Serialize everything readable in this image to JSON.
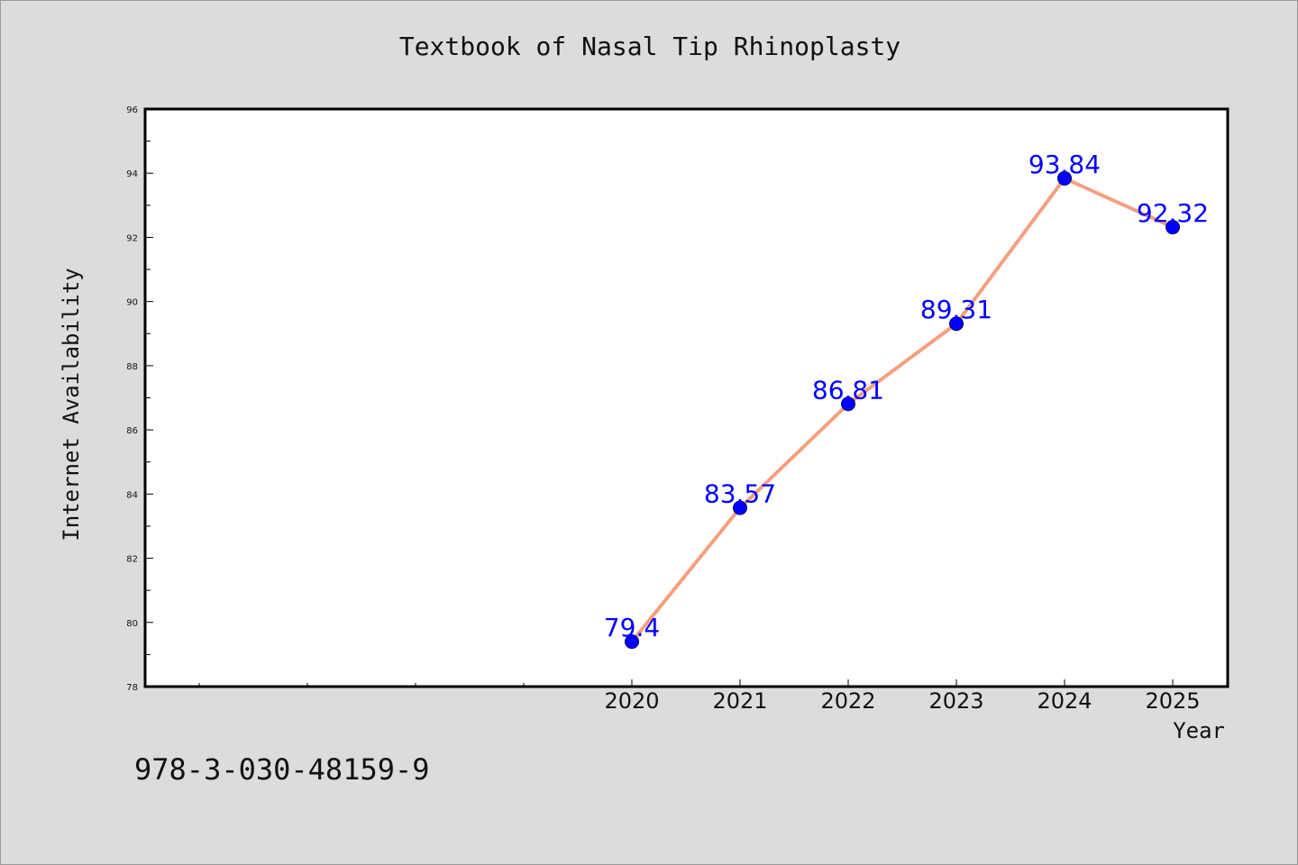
{
  "chart_data": {
    "type": "line",
    "title": "Textbook of Nasal Tip Rhinoplasty",
    "xlabel": "Year",
    "ylabel": "Internet Availability",
    "categories": [
      "2020",
      "2021",
      "2022",
      "2023",
      "2024",
      "2025"
    ],
    "series": [
      {
        "values": [
          79.4,
          83.57,
          86.81,
          89.31,
          93.84,
          92.32
        ],
        "labels": [
          "79.4",
          "83.57",
          "86.81",
          "89.31",
          "93.84",
          "92.32"
        ],
        "line_color": "#f4a07e",
        "marker_color": "#0000ff"
      }
    ],
    "ylim": [
      78,
      96
    ],
    "yticks": [
      78,
      80,
      82,
      84,
      86,
      88,
      90,
      92,
      94,
      96
    ],
    "grid": false,
    "legend": "none"
  },
  "footnote": "978-3-030-48159-9",
  "colors": {
    "background": "#dcdcdc",
    "plot_area": "#ffffff",
    "label_text": "#0000ff"
  }
}
